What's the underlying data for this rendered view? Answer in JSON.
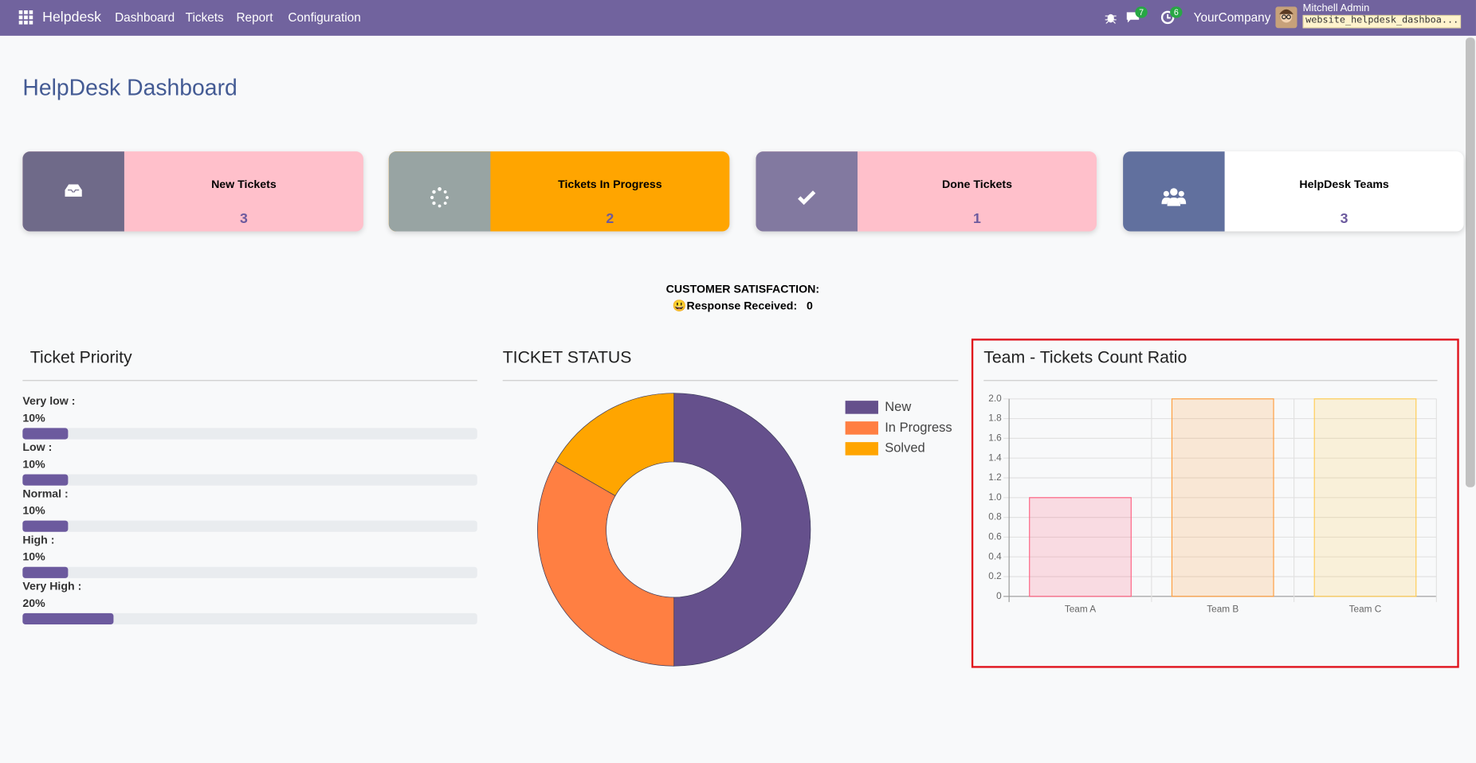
{
  "navbar": {
    "app": "Helpdesk",
    "menu": [
      "Dashboard",
      "Tickets",
      "Report",
      "Configuration"
    ],
    "messages_badge": "7",
    "activities_badge": "6",
    "company": "YourCompany",
    "user": "Mitchell Admin",
    "database": "website_helpdesk_dashboa..."
  },
  "header": {
    "title": "HelpDesk Dashboard"
  },
  "cards": [
    {
      "label": "New Tickets",
      "count": "3"
    },
    {
      "label": "Tickets In Progress",
      "count": "2"
    },
    {
      "label": "Done Tickets",
      "count": "1"
    },
    {
      "label": "HelpDesk Teams",
      "count": "3"
    }
  ],
  "satisfaction": {
    "title": "CUSTOMER SATISFACTION:",
    "label": "😃Response Received:",
    "value": "0"
  },
  "chart_data": [
    {
      "type": "progress",
      "title": "Ticket Priority",
      "categories": [
        "Very low :",
        "Low :",
        "Normal :",
        "High :",
        "Very High :"
      ],
      "values": [
        10,
        10,
        10,
        10,
        20
      ],
      "value_labels": [
        "10%",
        "10%",
        "10%",
        "10%",
        "20%"
      ],
      "xlim": [
        0,
        100
      ],
      "color": "#6c5a9e"
    },
    {
      "type": "donut",
      "title": "TICKET STATUS",
      "categories": [
        "New",
        "In Progress",
        "Solved"
      ],
      "values": [
        3,
        2,
        1
      ],
      "colors": [
        "#65508c",
        "#ff7f42",
        "#ffa500"
      ],
      "legend": "top-right"
    },
    {
      "type": "bar",
      "title": "Team - Tickets Count Ratio",
      "categories": [
        "Team A",
        "Team B",
        "Team C"
      ],
      "values": [
        1,
        2,
        2
      ],
      "colors": [
        "#ff6384",
        "#ff9f40",
        "#ffcd56"
      ],
      "ylim": [
        0,
        2
      ],
      "yticks": [
        0,
        0.2,
        0.4,
        0.6,
        0.8,
        {
          "value": 1,
          "label": "1.0"
        },
        1.2,
        1.4,
        1.6,
        1.8,
        {
          "value": 2,
          "label": "2.0"
        }
      ],
      "grid": true
    }
  ]
}
